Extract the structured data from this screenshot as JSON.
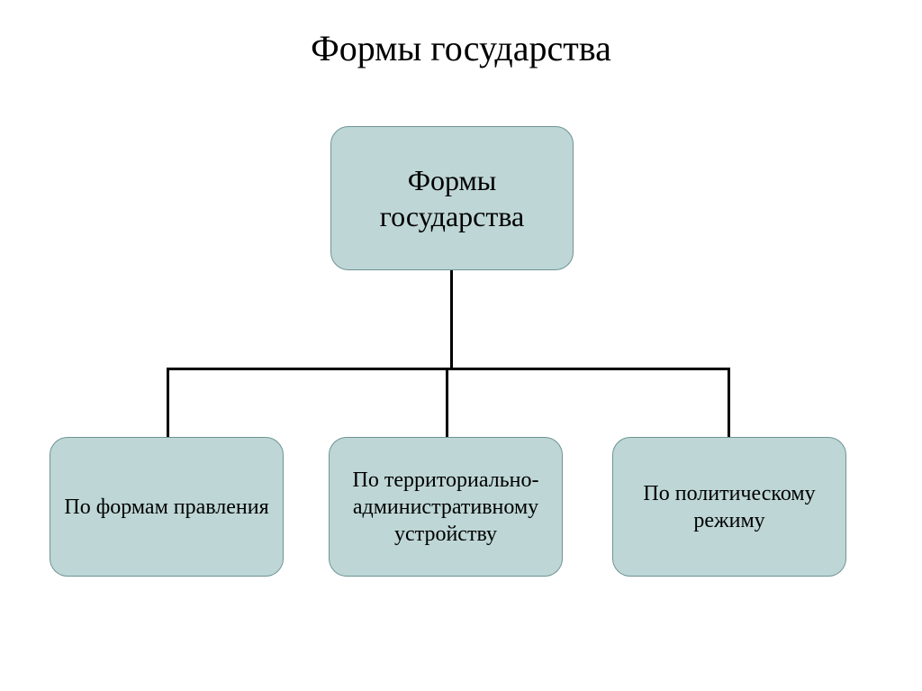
{
  "title": "Формы государства",
  "diagram": {
    "type": "tree",
    "background_color": "#ffffff",
    "connector_color": "#000000",
    "connector_width": 3,
    "node_fill": "#bed6d6",
    "node_border": "#6e9494",
    "node_text_color": "#000000",
    "node_border_radius": 20,
    "title_fontsize": 40,
    "root_fontsize": 32,
    "child_fontsize": 24,
    "root": {
      "label": "Формы государства"
    },
    "children": [
      {
        "label": "По формам правления"
      },
      {
        "label": "По территориально-административному устройству"
      },
      {
        "label": "По политическому режиму"
      }
    ]
  }
}
